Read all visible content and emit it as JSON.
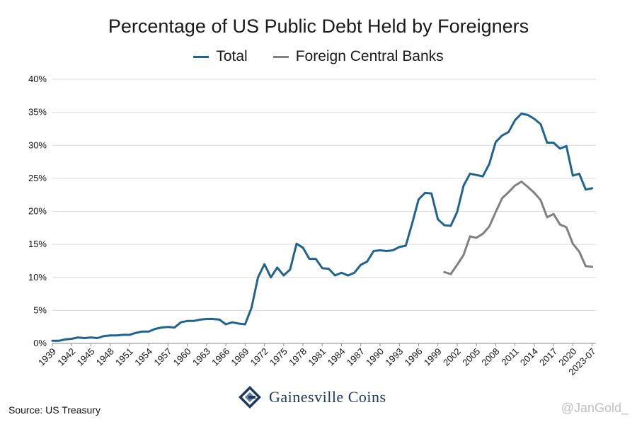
{
  "chart_data": {
    "type": "line",
    "title": "Percentage of US Public Debt Held by Foreigners",
    "xlabel": "",
    "ylabel": "",
    "ylim": [
      0,
      40
    ],
    "yticks": [
      "0%",
      "5%",
      "10%",
      "15%",
      "20%",
      "25%",
      "30%",
      "35%",
      "40%"
    ],
    "xticks": [
      "1939",
      "1942",
      "1945",
      "1948",
      "1951",
      "1954",
      "1957",
      "1960",
      "1963",
      "1966",
      "1969",
      "1972",
      "1975",
      "1978",
      "1981",
      "1984",
      "1987",
      "1990",
      "1993",
      "1996",
      "1999",
      "2002",
      "2005",
      "2008",
      "2011",
      "2014",
      "2017",
      "2020",
      "2023-07"
    ],
    "grid": true,
    "legend_position": "top-center",
    "series": [
      {
        "name": "Total",
        "color": "#1f6391",
        "x": [
          1939,
          1940,
          1941,
          1942,
          1943,
          1944,
          1945,
          1946,
          1947,
          1948,
          1949,
          1950,
          1951,
          1952,
          1953,
          1954,
          1955,
          1956,
          1957,
          1958,
          1959,
          1960,
          1961,
          1962,
          1963,
          1964,
          1965,
          1966,
          1967,
          1968,
          1969,
          1970,
          1971,
          1972,
          1973,
          1974,
          1975,
          1976,
          1977,
          1978,
          1979,
          1980,
          1981,
          1982,
          1983,
          1984,
          1985,
          1986,
          1987,
          1988,
          1989,
          1990,
          1991,
          1992,
          1993,
          1994,
          1995,
          1996,
          1997,
          1998,
          1999,
          2000,
          2001,
          2002,
          2003,
          2004,
          2005,
          2006,
          2007,
          2008,
          2009,
          2010,
          2011,
          2012,
          2013,
          2014,
          2015,
          2016,
          2017,
          2018,
          2019,
          2020,
          2021,
          2022,
          2023
        ],
        "values": [
          0.4,
          0.4,
          0.6,
          0.7,
          0.9,
          0.8,
          0.9,
          0.8,
          1.1,
          1.2,
          1.2,
          1.3,
          1.3,
          1.6,
          1.8,
          1.8,
          2.2,
          2.4,
          2.5,
          2.4,
          3.2,
          3.4,
          3.4,
          3.6,
          3.7,
          3.7,
          3.6,
          2.9,
          3.2,
          3.0,
          2.9,
          5.4,
          10.0,
          12.0,
          10.0,
          11.5,
          10.3,
          11.2,
          15.1,
          14.5,
          12.8,
          12.8,
          11.4,
          11.3,
          10.3,
          10.7,
          10.3,
          10.7,
          11.9,
          12.4,
          14.0,
          14.1,
          14.0,
          14.1,
          14.6,
          14.8,
          18.2,
          21.8,
          22.8,
          22.7,
          18.8,
          17.9,
          17.8,
          19.9,
          23.9,
          25.7,
          25.5,
          25.3,
          27.2,
          30.5,
          31.5,
          32.0,
          33.8,
          34.8,
          34.6,
          34.0,
          33.2,
          30.4,
          30.4,
          29.5,
          29.9,
          25.4,
          25.7,
          23.3,
          23.5
        ]
      },
      {
        "name": "Foreign Central Banks",
        "color": "#808080",
        "x": [
          2000,
          2001,
          2002,
          2003,
          2004,
          2005,
          2006,
          2007,
          2008,
          2009,
          2010,
          2011,
          2012,
          2013,
          2014,
          2015,
          2016,
          2017,
          2018,
          2019,
          2020,
          2021,
          2022,
          2023
        ],
        "values": [
          10.8,
          10.5,
          11.9,
          13.4,
          16.2,
          16.0,
          16.6,
          17.7,
          19.9,
          22.0,
          22.9,
          23.9,
          24.5,
          23.7,
          22.8,
          21.7,
          19.1,
          19.6,
          18.0,
          17.6,
          15.1,
          13.9,
          11.7,
          11.6
        ]
      }
    ]
  },
  "footer": {
    "source": "Source: US Treasury",
    "logo_text": "Gainesville Coins",
    "watermark": "@JanGold_"
  }
}
